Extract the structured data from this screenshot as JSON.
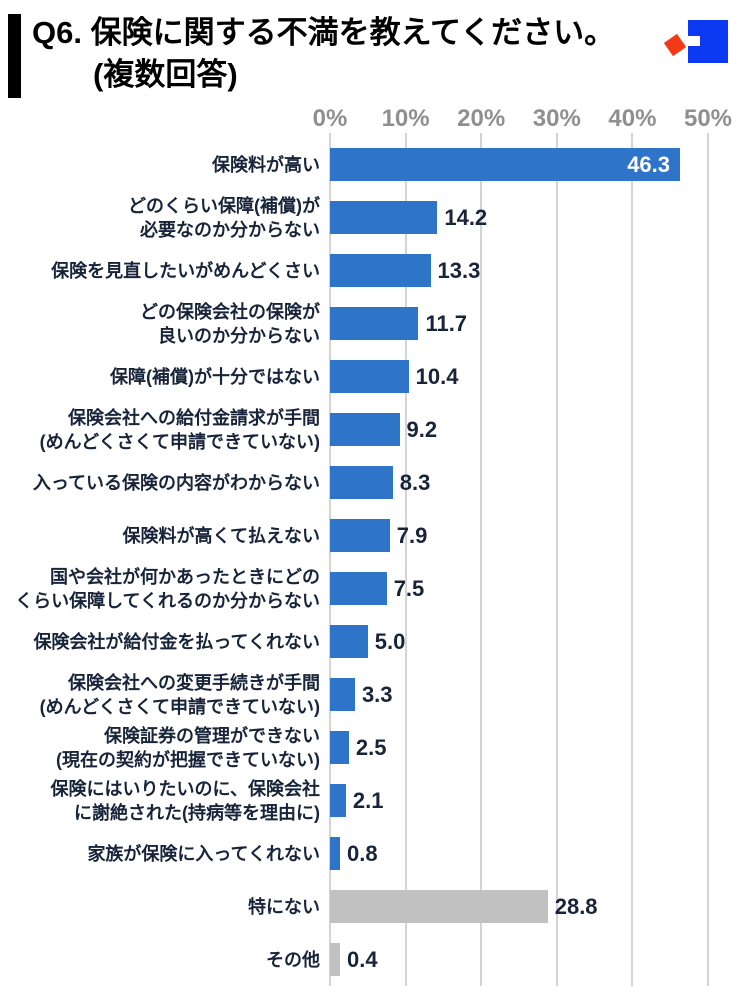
{
  "header": {
    "title_line1": "Q6. 保険に関する不満を教えてください。",
    "title_line2": "(複数回答)",
    "logo": {
      "blue": "#0b3af2",
      "red": "#f23a17"
    }
  },
  "style": {
    "accent_bar": "#000000",
    "grid_color": "#d4d4d4",
    "axis_text_color": "#8f8f8f",
    "label_text_color": "#18243a",
    "value_text_color": "#18243a",
    "value_inside_color": "#ffffff"
  },
  "chart_data": {
    "type": "bar",
    "orientation": "horizontal",
    "title": "Q6. 保険に関する不満を教えてください。(複数回答)",
    "unit": "%",
    "xlim": [
      0,
      50
    ],
    "x_ticks": [
      "0%",
      "10%",
      "20%",
      "30%",
      "40%",
      "50%"
    ],
    "grid": true,
    "colors": {
      "default": "#2e74c8",
      "muted": "#c1c1c1"
    },
    "rows": [
      {
        "label_lines": [
          "保険料が高い"
        ],
        "value": 46.3,
        "display": "46.3",
        "color": "default",
        "value_inside": true
      },
      {
        "label_lines": [
          "どのくらい保障(補償)が",
          "必要なのか分からない"
        ],
        "value": 14.2,
        "display": "14.2",
        "color": "default",
        "value_inside": false
      },
      {
        "label_lines": [
          "保険を見直したいがめんどくさい"
        ],
        "value": 13.3,
        "display": "13.3",
        "color": "default",
        "value_inside": false
      },
      {
        "label_lines": [
          "どの保険会社の保険が",
          "良いのか分からない"
        ],
        "value": 11.7,
        "display": "11.7",
        "color": "default",
        "value_inside": false
      },
      {
        "label_lines": [
          "保障(補償)が十分ではない"
        ],
        "value": 10.4,
        "display": "10.4",
        "color": "default",
        "value_inside": false
      },
      {
        "label_lines": [
          "保険会社への給付金請求が手間",
          "(めんどくさくて申請できていない)"
        ],
        "value": 9.2,
        "display": "9.2",
        "color": "default",
        "value_inside": false
      },
      {
        "label_lines": [
          "入っている保険の内容がわからない"
        ],
        "value": 8.3,
        "display": "8.3",
        "color": "default",
        "value_inside": false
      },
      {
        "label_lines": [
          "保険料が高くて払えない"
        ],
        "value": 7.9,
        "display": "7.9",
        "color": "default",
        "value_inside": false
      },
      {
        "label_lines": [
          "国や会社が何かあったときにどの",
          "くらい保障してくれるのか分からない"
        ],
        "value": 7.5,
        "display": "7.5",
        "color": "default",
        "value_inside": false
      },
      {
        "label_lines": [
          "保険会社が給付金を払ってくれない"
        ],
        "value": 5.0,
        "display": "5.0",
        "color": "default",
        "value_inside": false
      },
      {
        "label_lines": [
          "保険会社への変更手続きが手間",
          "(めんどくさくて申請できていない)"
        ],
        "value": 3.3,
        "display": "3.3",
        "color": "default",
        "value_inside": false
      },
      {
        "label_lines": [
          "保険証券の管理ができない",
          "(現在の契約が把握できていない)"
        ],
        "value": 2.5,
        "display": "2.5",
        "color": "default",
        "value_inside": false
      },
      {
        "label_lines": [
          "保険にはいりたいのに、保険会社",
          "に謝絶された(持病等を理由に)"
        ],
        "value": 2.1,
        "display": "2.1",
        "color": "default",
        "value_inside": false
      },
      {
        "label_lines": [
          "家族が保険に入ってくれない"
        ],
        "value": 0.8,
        "display": "0.8",
        "color": "default",
        "value_inside": false
      },
      {
        "label_lines": [
          "特にない"
        ],
        "value": 28.8,
        "display": "28.8",
        "color": "muted",
        "value_inside": false
      },
      {
        "label_lines": [
          "その他"
        ],
        "value": 0.4,
        "display": "0.4",
        "color": "muted",
        "value_inside": false
      }
    ]
  }
}
